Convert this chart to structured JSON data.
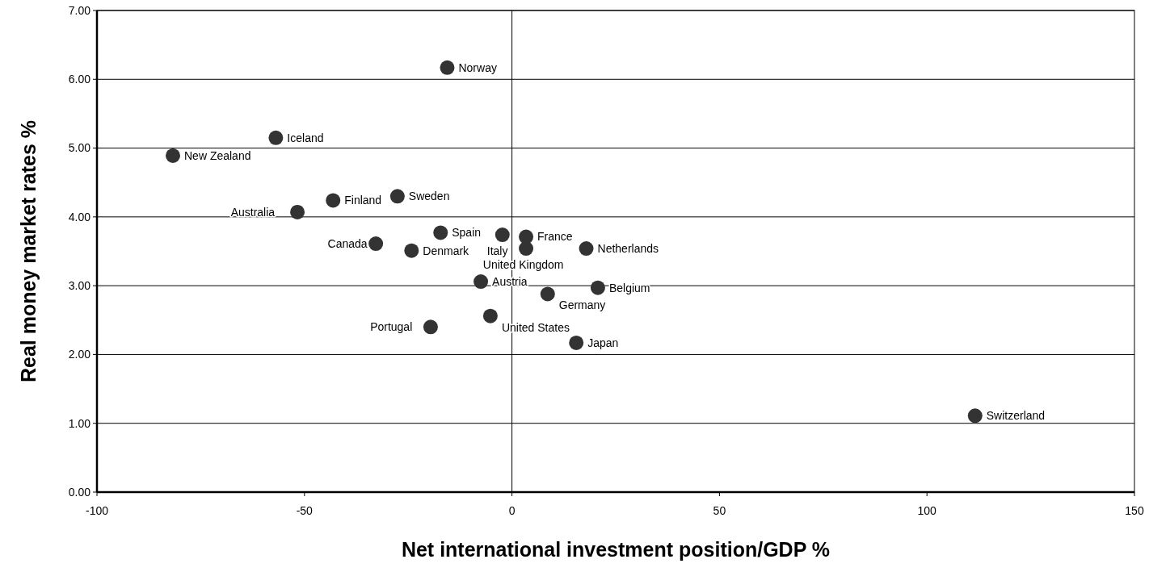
{
  "chart_data": {
    "type": "scatter",
    "xlabel": "Net international investment position/GDP %",
    "ylabel": "Real money market rates %",
    "xlim": [
      -100,
      150
    ],
    "xticks": [
      -100,
      -50,
      0,
      50,
      100,
      150
    ],
    "ylim": [
      0,
      7
    ],
    "yticks": [
      {
        "value": 0,
        "label": "0.00"
      },
      {
        "value": 1,
        "label": "1.00"
      },
      {
        "value": 2,
        "label": "2.00"
      },
      {
        "value": 3,
        "label": "3.00"
      },
      {
        "value": 4,
        "label": "4.00"
      },
      {
        "value": 5,
        "label": "5.00"
      },
      {
        "value": 6,
        "label": "6.00"
      },
      {
        "value": 7,
        "label": "7.00"
      }
    ],
    "grid": "y",
    "marker": "circle",
    "ref_lines": [
      {
        "axis": "x",
        "value": 0,
        "color": "#000000"
      }
    ],
    "series": [
      {
        "color": "#333333",
        "x": [
          -15.6,
          -56.9,
          -81.7,
          -43.1,
          -27.6,
          -51.7,
          -17.2,
          -32.8,
          -24.2,
          -7.5,
          -19.6,
          -2.3,
          3.4,
          3.4,
          17.9,
          8.6,
          20.7,
          -5.2,
          15.5,
          111.6
        ],
        "values": [
          6.17,
          5.15,
          4.89,
          4.24,
          4.3,
          4.07,
          3.77,
          3.61,
          3.51,
          3.06,
          2.4,
          3.74,
          3.71,
          3.54,
          3.54,
          2.88,
          2.97,
          2.56,
          2.17,
          1.11
        ]
      }
    ],
    "annotations": [
      {
        "text": "Norway",
        "x": -15.6,
        "y": 6.17
      },
      {
        "text": "Iceland",
        "x": -56.9,
        "y": 5.15
      },
      {
        "text": "New Zealand",
        "x": -81.7,
        "y": 4.89
      },
      {
        "text": "Finland",
        "x": -43.1,
        "y": 4.24
      },
      {
        "text": "Sweden",
        "x": -27.6,
        "y": 4.3
      },
      {
        "text": "Australia",
        "x": -51.7,
        "y": 4.07
      },
      {
        "text": "Spain",
        "x": -17.2,
        "y": 3.77
      },
      {
        "text": "Canada",
        "x": -32.8,
        "y": 3.61
      },
      {
        "text": "Denmark",
        "x": -24.2,
        "y": 3.51
      },
      {
        "text": "Austria",
        "x": -7.5,
        "y": 3.06
      },
      {
        "text": "Portugal",
        "x": -19.6,
        "y": 2.4
      },
      {
        "text": "Italy",
        "x": -2.3,
        "y": 3.74
      },
      {
        "text": "France",
        "x": 3.4,
        "y": 3.71
      },
      {
        "text": "United Kingdom",
        "x": 3.4,
        "y": 3.54
      },
      {
        "text": "Netherlands",
        "x": 17.9,
        "y": 3.54
      },
      {
        "text": "Germany",
        "x": 8.6,
        "y": 2.88
      },
      {
        "text": "Belgium",
        "x": 20.7,
        "y": 2.97
      },
      {
        "text": "United States",
        "x": -5.2,
        "y": 2.56
      },
      {
        "text": "Japan",
        "x": 15.5,
        "y": 2.17
      },
      {
        "text": "Switzerland",
        "x": 111.6,
        "y": 1.11
      }
    ]
  }
}
